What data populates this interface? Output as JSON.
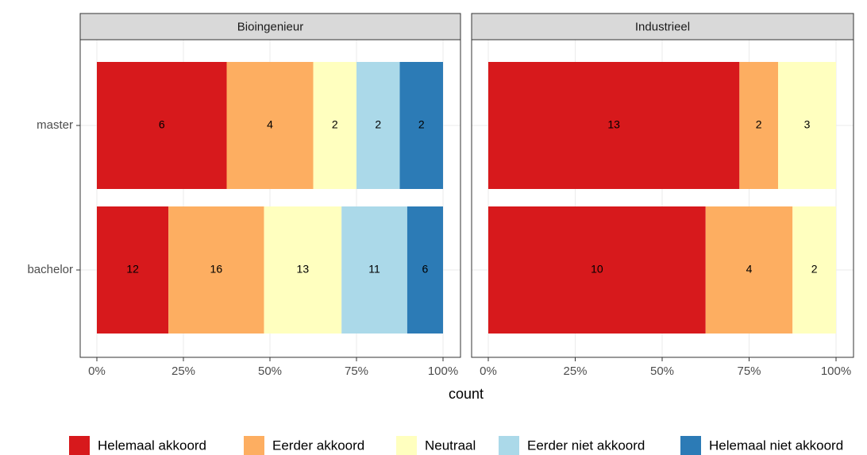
{
  "chart_data": {
    "type": "bar",
    "stacked": "fill",
    "orientation": "horizontal",
    "panels": [
      "Bioingenieur",
      "Industrieel"
    ],
    "categories": [
      "master",
      "bachelor"
    ],
    "xlabel": "count",
    "xlim": [
      0,
      100
    ],
    "xticks": [
      {
        "value": 0,
        "label": "0%"
      },
      {
        "value": 25,
        "label": "25%"
      },
      {
        "value": 50,
        "label": "50%"
      },
      {
        "value": 75,
        "label": "75%"
      },
      {
        "value": 100,
        "label": "100%"
      }
    ],
    "grid": true,
    "legend": "bottom",
    "series": [
      {
        "name": "Helemaal akkoord",
        "color": "#d7191c",
        "values": [
          [
            6,
            12
          ],
          [
            13,
            10
          ]
        ]
      },
      {
        "name": "Eerder akkoord",
        "color": "#fdae61",
        "values": [
          [
            4,
            16
          ],
          [
            2,
            4
          ]
        ]
      },
      {
        "name": "Neutraal",
        "color": "#ffffbf",
        "values": [
          [
            2,
            13
          ],
          [
            3,
            2
          ]
        ]
      },
      {
        "name": "Eerder niet akkoord",
        "color": "#abd9e9",
        "values": [
          [
            2,
            11
          ],
          [
            null,
            null
          ]
        ]
      },
      {
        "name": "Helemaal niet akkoord",
        "color": "#2c7bb6",
        "values": [
          [
            2,
            6
          ],
          [
            null,
            null
          ]
        ]
      }
    ]
  }
}
